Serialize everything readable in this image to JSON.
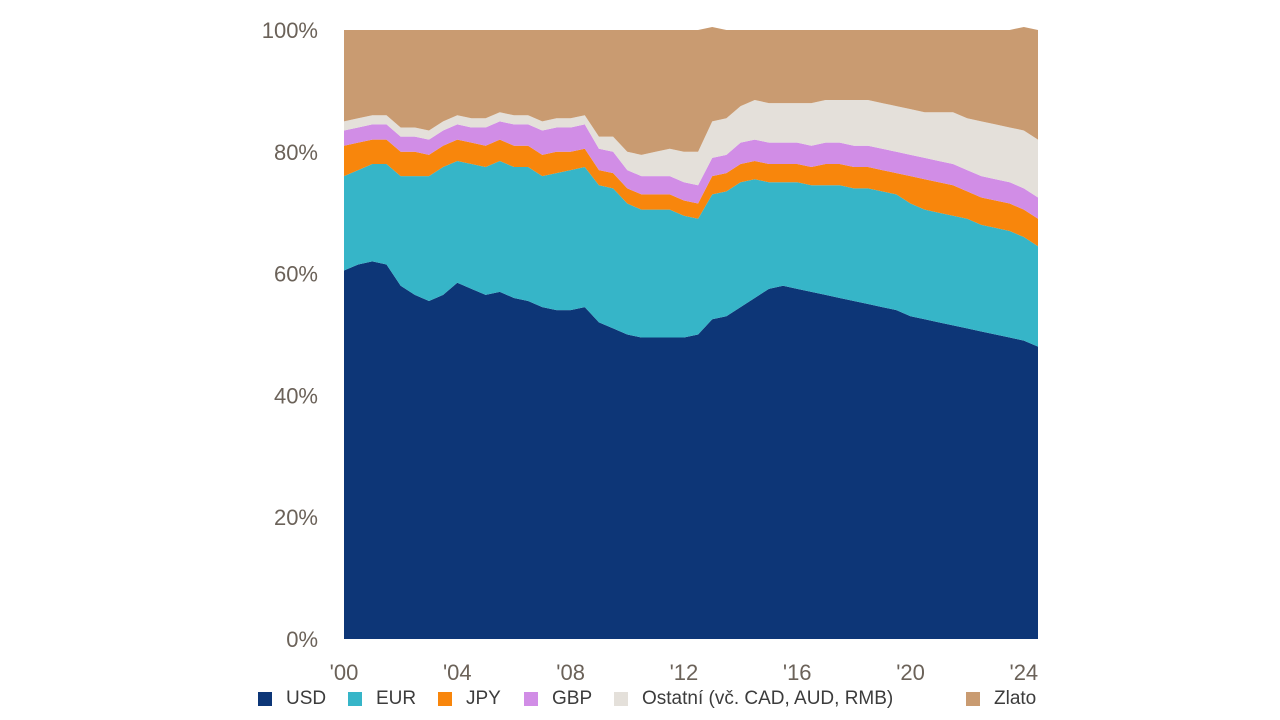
{
  "chart_data": {
    "type": "area",
    "stacked": true,
    "x_ticks": [
      "'00",
      "'04",
      "'08",
      "'12",
      "'16",
      "'20",
      "'24"
    ],
    "y_ticks": [
      "0%",
      "20%",
      "40%",
      "60%",
      "80%",
      "100%"
    ],
    "ylim": [
      0,
      100
    ],
    "x": [
      "2000-Q1",
      "2000-Q3",
      "2001-Q1",
      "2001-Q3",
      "2002-Q1",
      "2002-Q3",
      "2003-Q1",
      "2003-Q3",
      "2004-Q1",
      "2004-Q3",
      "2005-Q1",
      "2005-Q3",
      "2006-Q1",
      "2006-Q3",
      "2007-Q1",
      "2007-Q3",
      "2008-Q1",
      "2008-Q3",
      "2009-Q1",
      "2009-Q3",
      "2010-Q1",
      "2010-Q3",
      "2011-Q1",
      "2011-Q3",
      "2012-Q1",
      "2012-Q3",
      "2013-Q1",
      "2013-Q3",
      "2014-Q1",
      "2014-Q3",
      "2015-Q1",
      "2015-Q3",
      "2016-Q1",
      "2016-Q3",
      "2017-Q1",
      "2017-Q3",
      "2018-Q1",
      "2018-Q3",
      "2019-Q1",
      "2019-Q3",
      "2020-Q1",
      "2020-Q3",
      "2021-Q1",
      "2021-Q3",
      "2022-Q1",
      "2022-Q3",
      "2023-Q1",
      "2023-Q3",
      "2024-Q1",
      "2024-Q3"
    ],
    "series": [
      {
        "name": "USD",
        "color": "#0d3677",
        "values": [
          60.5,
          61.5,
          62,
          61.5,
          58,
          56.5,
          55.5,
          56.5,
          58.5,
          57.5,
          56.5,
          57,
          56,
          55.5,
          54.5,
          54,
          54,
          54.5,
          52,
          51,
          50,
          49.5,
          49.5,
          49.5,
          49.5,
          50,
          52.5,
          53,
          54.5,
          56,
          57.5,
          58,
          57.5,
          57,
          56.5,
          56,
          55.5,
          55,
          54.5,
          54,
          53,
          52.5,
          52,
          51.5,
          51,
          50.5,
          50,
          49.5,
          49,
          48
        ]
      },
      {
        "name": "EUR",
        "color": "#36b5c8",
        "values": [
          15.5,
          15.5,
          16,
          16.5,
          18,
          19.5,
          20.5,
          21,
          20,
          20.5,
          21,
          21.5,
          21.5,
          22,
          21.5,
          22.5,
          23,
          23,
          22.5,
          23,
          21.5,
          21,
          21,
          21,
          20,
          19,
          20.5,
          20.5,
          20.5,
          19.5,
          17.5,
          17,
          17.5,
          17.5,
          18,
          18.5,
          18.5,
          19,
          19,
          19,
          18.5,
          18,
          18,
          18,
          18,
          17.5,
          17.5,
          17.5,
          17,
          16.5
        ]
      },
      {
        "name": "JPY",
        "color": "#f8860c",
        "values": [
          5,
          4.5,
          4,
          4,
          4,
          4,
          3.5,
          3.5,
          3.5,
          3.5,
          3.5,
          3.5,
          3.5,
          3.5,
          3.5,
          3.5,
          3,
          3,
          2.5,
          2.5,
          2.5,
          2.5,
          2.5,
          2.5,
          2.5,
          2.5,
          3,
          3,
          3,
          3,
          3,
          3,
          3,
          3,
          3.5,
          3.5,
          3.5,
          3.5,
          3.5,
          3.5,
          4.5,
          5,
          5,
          5,
          4.5,
          4.5,
          4.5,
          4.5,
          4.5,
          4.5
        ]
      },
      {
        "name": "GBP",
        "color": "#d18de6",
        "values": [
          2.5,
          2.5,
          2.5,
          2.5,
          2.5,
          2.5,
          2.5,
          2.5,
          2.5,
          2.5,
          3,
          3,
          3.5,
          3.5,
          4,
          4,
          4,
          4,
          3.5,
          3.5,
          3,
          3,
          3,
          3,
          3,
          3,
          3,
          3,
          3.5,
          3.5,
          3.5,
          3.5,
          3.5,
          3.5,
          3.5,
          3.5,
          3.5,
          3.5,
          3.5,
          3.5,
          3.5,
          3.5,
          3.5,
          3.5,
          3.5,
          3.5,
          3.5,
          3.5,
          3.5,
          3.5
        ]
      },
      {
        "name": "Ostatní (vč. CAD, AUD, RMB)",
        "color": "#e4e0da",
        "values": [
          1.5,
          1.5,
          1.5,
          1.5,
          1.5,
          1.5,
          1.5,
          1.5,
          1.5,
          1.5,
          1.5,
          1.5,
          1.5,
          1.5,
          1.5,
          1.5,
          1.5,
          1.5,
          2,
          2.5,
          3,
          3.5,
          4,
          4.5,
          5,
          5.5,
          6,
          6,
          6,
          6.5,
          6.5,
          6.5,
          6.5,
          7,
          7,
          7,
          7.5,
          7.5,
          7.5,
          7.5,
          7.5,
          7.5,
          8,
          8.5,
          8.5,
          9,
          9,
          9,
          9.5,
          9.5
        ]
      },
      {
        "name": "Zlato",
        "color": "#c99b71",
        "values": [
          15,
          14.5,
          14,
          14,
          16,
          16,
          16.5,
          15,
          14,
          14.5,
          14.5,
          13.5,
          14,
          14,
          15,
          14.5,
          14.5,
          14,
          17.5,
          17.5,
          20,
          20.5,
          20,
          19.5,
          20,
          20,
          15.5,
          14.5,
          12.5,
          11.5,
          12,
          12,
          12,
          12,
          11.5,
          11.5,
          11.5,
          11.5,
          12,
          12.5,
          13,
          13.5,
          13.5,
          13.5,
          14.5,
          15,
          15.5,
          16,
          17,
          18
        ]
      }
    ]
  }
}
